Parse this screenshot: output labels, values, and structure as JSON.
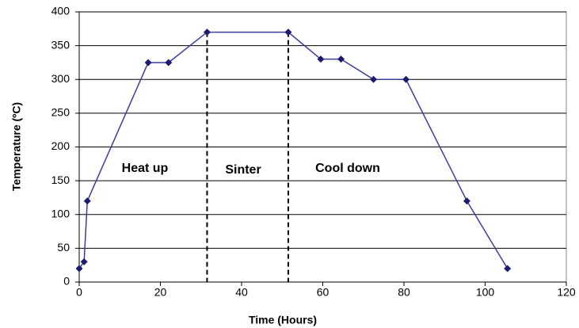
{
  "chart_data": {
    "type": "line",
    "x_label": "Time (Hours)",
    "y_label": "Temperature (ºC)",
    "x": [
      0,
      1.2,
      2,
      17,
      22,
      31.5,
      51.5,
      59.5,
      64.5,
      72.5,
      80.5,
      95.5,
      105.5
    ],
    "values": [
      20,
      30,
      120,
      325,
      325,
      370,
      370,
      330,
      330,
      300,
      300,
      120,
      20
    ],
    "color": "#3c3c9c",
    "marker_color": "#1c1c6e",
    "phase_boundaries": [
      31.5,
      51.5
    ],
    "annotations": [
      "Heat up",
      "Sinter",
      "Cool down"
    ],
    "xlim": [
      0,
      120
    ],
    "xticks": [
      0,
      20,
      40,
      60,
      80,
      100,
      120
    ],
    "ylim": [
      0,
      400
    ],
    "yticks": [
      0,
      50,
      100,
      150,
      200,
      250,
      300,
      350,
      400
    ],
    "grid": true
  }
}
